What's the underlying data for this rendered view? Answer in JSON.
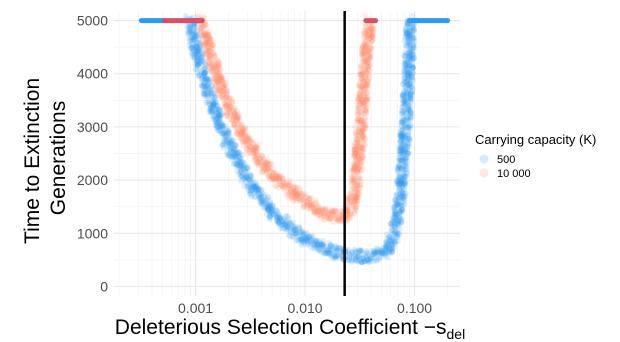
{
  "chart_data": {
    "type": "scatter",
    "xlabel": "Deleterious Selection Coefficient −s",
    "xlabel_subscript": "del",
    "ylabel_lines": [
      "Time to Extinction",
      "Generations"
    ],
    "x_scale": "log",
    "xlim": [
      0.00018,
      0.26
    ],
    "ylim": [
      -180,
      5180
    ],
    "x_ticks": [
      {
        "value": 0.001,
        "label": "0.001"
      },
      {
        "value": 0.01,
        "label": "0.010"
      },
      {
        "value": 0.1,
        "label": "0.100"
      }
    ],
    "y_ticks": [
      {
        "value": 0,
        "label": "0"
      },
      {
        "value": 1000,
        "label": "1000"
      },
      {
        "value": 2000,
        "label": "2000"
      },
      {
        "value": 3000,
        "label": "3000"
      },
      {
        "value": 4000,
        "label": "4000"
      },
      {
        "value": 5000,
        "label": "5000"
      }
    ],
    "grid": true,
    "vline": {
      "x": 0.023,
      "color": "#000000"
    },
    "legend": {
      "title": "Carrying capacity (K)",
      "position": "right",
      "entries": [
        {
          "label": "500",
          "color": "#2e9bf0"
        },
        {
          "label": "10 000",
          "color": "#ff8a6e"
        }
      ]
    },
    "series": [
      {
        "name": "500",
        "color": "#2e9bf0",
        "opacity": 0.15,
        "cap_segments": [
          [
            0.00032,
            0.00052
          ],
          [
            0.0009,
            0.0011
          ],
          [
            0.09,
            0.2
          ]
        ],
        "cap_y": 5000,
        "points": [
          [
            0.0009,
            5000
          ],
          [
            0.001,
            4500
          ],
          [
            0.0012,
            3900
          ],
          [
            0.0015,
            3300
          ],
          [
            0.002,
            2700
          ],
          [
            0.0025,
            2300
          ],
          [
            0.003,
            2000
          ],
          [
            0.004,
            1650
          ],
          [
            0.005,
            1400
          ],
          [
            0.006,
            1250
          ],
          [
            0.008,
            1050
          ],
          [
            0.01,
            900
          ],
          [
            0.013,
            780
          ],
          [
            0.016,
            690
          ],
          [
            0.02,
            630
          ],
          [
            0.025,
            590
          ],
          [
            0.03,
            570
          ],
          [
            0.04,
            560
          ],
          [
            0.05,
            600
          ],
          [
            0.058,
            720
          ],
          [
            0.065,
            1000
          ],
          [
            0.072,
            1500
          ],
          [
            0.078,
            2200
          ],
          [
            0.083,
            3000
          ],
          [
            0.087,
            3800
          ],
          [
            0.09,
            4500
          ],
          [
            0.092,
            5000
          ]
        ]
      },
      {
        "name": "10 000",
        "color": "#ff8a6e",
        "opacity": 0.15,
        "cap_segments": [
          [
            0.00052,
            0.00115
          ],
          [
            0.036,
            0.044
          ]
        ],
        "cap_y": 5000,
        "cap_color": "#d6506a",
        "points": [
          [
            0.00115,
            5000
          ],
          [
            0.0013,
            4500
          ],
          [
            0.0016,
            3900
          ],
          [
            0.002,
            3400
          ],
          [
            0.0025,
            3000
          ],
          [
            0.003,
            2700
          ],
          [
            0.004,
            2350
          ],
          [
            0.005,
            2100
          ],
          [
            0.006,
            1950
          ],
          [
            0.008,
            1750
          ],
          [
            0.01,
            1600
          ],
          [
            0.013,
            1450
          ],
          [
            0.016,
            1350
          ],
          [
            0.02,
            1300
          ],
          [
            0.023,
            1320
          ],
          [
            0.026,
            1450
          ],
          [
            0.029,
            1850
          ],
          [
            0.031,
            2500
          ],
          [
            0.033,
            3200
          ],
          [
            0.035,
            4000
          ],
          [
            0.037,
            4600
          ],
          [
            0.039,
            5000
          ]
        ]
      }
    ]
  }
}
